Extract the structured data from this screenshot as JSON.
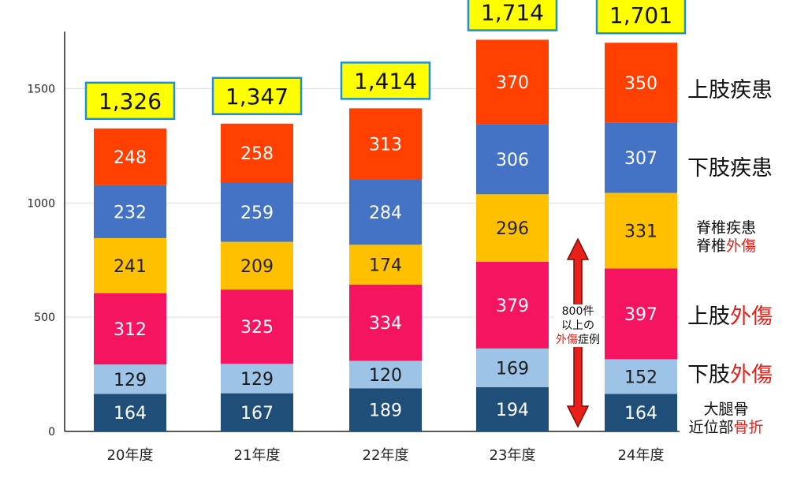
{
  "chart_data": {
    "type": "bar",
    "stacked": true,
    "categories": [
      "20年度",
      "21年度",
      "22年度",
      "23年度",
      "24年度"
    ],
    "ylim": [
      0,
      1750
    ],
    "yticks": [
      0,
      500,
      1000,
      1500
    ],
    "grid": true,
    "series": [
      {
        "name": "大腿骨近位部骨折",
        "color": "#1f4e79",
        "values": [
          164,
          167,
          189,
          194,
          164
        ]
      },
      {
        "name": "下肢外傷",
        "color": "#9dc3e6",
        "values": [
          129,
          129,
          120,
          169,
          152
        ]
      },
      {
        "name": "上肢外傷",
        "color": "#f5145f",
        "values": [
          312,
          325,
          334,
          379,
          397
        ]
      },
      {
        "name": "脊椎疾患 脊椎外傷",
        "color": "#ffc000",
        "values": [
          241,
          209,
          174,
          296,
          331
        ]
      },
      {
        "name": "下肢疾患",
        "color": "#4472c4",
        "values": [
          232,
          259,
          284,
          306,
          307
        ]
      },
      {
        "name": "上肢疾患",
        "color": "#ff4000",
        "values": [
          248,
          258,
          313,
          370,
          350
        ]
      }
    ],
    "totals": [
      "1,326",
      "1,347",
      "1,414",
      "1,714",
      "1,701"
    ],
    "total_box_color": "#ffff00",
    "total_border_color": "#1f8fd6"
  },
  "legend": {
    "upper_disease": "上肢疾患",
    "lower_disease": "下肢疾患",
    "spine_disease": "脊椎疾患",
    "spine_trauma_a": "脊椎",
    "spine_trauma_b": "外傷",
    "upper_trauma_a": "上肢",
    "upper_trauma_b": "外傷",
    "lower_trauma_a": "下肢",
    "lower_trauma_b": "外傷",
    "femur_line1": "大腿骨",
    "femur_a": "近位部",
    "femur_b": "骨折"
  },
  "annotation": {
    "line1": "800件",
    "line2": "以上の",
    "line3a": "外傷",
    "line3b": "症例",
    "arrow_color": "#e8201a"
  }
}
